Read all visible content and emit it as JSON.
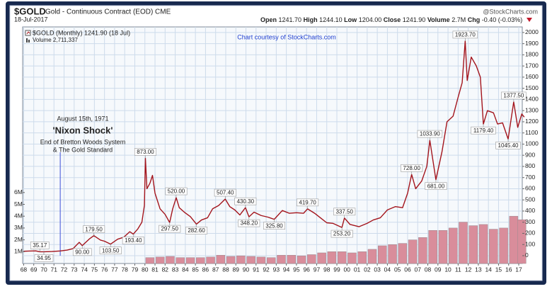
{
  "header": {
    "symbol": "$GOLD",
    "description": "Gold - Continuous Contract (EOD) CME",
    "date": "18-Jul-2017",
    "credit": "@StockCharts.com",
    "quote": [
      {
        "label": "Open",
        "value": "1241.70"
      },
      {
        "label": "High",
        "value": "1244.10"
      },
      {
        "label": "Low",
        "value": "1204.00"
      },
      {
        "label": "Close",
        "value": "1241.90"
      },
      {
        "label": "Volume",
        "value": "2.7M"
      },
      {
        "label": "Chg",
        "value": "-0.40 (-0.03%)"
      }
    ]
  },
  "chart_data": {
    "type": "line",
    "subtitle": "Chart courtesy of StockCharts.com",
    "grid": true,
    "annotations": [
      {
        "x": 1971.62,
        "lines": [
          "August 15th, 1971",
          "'Nixon Shock'",
          "End of Bretton Woods System",
          "& The Gold Standard"
        ]
      }
    ],
    "xlim": [
      1967.9,
      2017.35
    ],
    "xticks": [
      {
        "value": 1968,
        "label": "68"
      },
      {
        "value": 1969,
        "label": "69"
      },
      {
        "value": 1970,
        "label": "70"
      },
      {
        "value": 1971,
        "label": "71"
      },
      {
        "value": 1972,
        "label": "72"
      },
      {
        "value": 1973,
        "label": "73"
      },
      {
        "value": 1974,
        "label": "74"
      },
      {
        "value": 1975,
        "label": "75"
      },
      {
        "value": 1976,
        "label": "76"
      },
      {
        "value": 1977,
        "label": "77"
      },
      {
        "value": 1978,
        "label": "78"
      },
      {
        "value": 1979,
        "label": "79"
      },
      {
        "value": 1980,
        "label": "80"
      },
      {
        "value": 1981,
        "label": "81"
      },
      {
        "value": 1982,
        "label": "82"
      },
      {
        "value": 1983,
        "label": "83"
      },
      {
        "value": 1984,
        "label": "84"
      },
      {
        "value": 1985,
        "label": "85"
      },
      {
        "value": 1986,
        "label": "86"
      },
      {
        "value": 1987,
        "label": "87"
      },
      {
        "value": 1988,
        "label": "88"
      },
      {
        "value": 1989,
        "label": "89"
      },
      {
        "value": 1990,
        "label": "90"
      },
      {
        "value": 1991,
        "label": "91"
      },
      {
        "value": 1992,
        "label": "92"
      },
      {
        "value": 1993,
        "label": "93"
      },
      {
        "value": 1994,
        "label": "94"
      },
      {
        "value": 1995,
        "label": "95"
      },
      {
        "value": 1996,
        "label": "96"
      },
      {
        "value": 1997,
        "label": "97"
      },
      {
        "value": 1998,
        "label": "98"
      },
      {
        "value": 1999,
        "label": "99"
      },
      {
        "value": 2000,
        "label": "00"
      },
      {
        "value": 2001,
        "label": "01"
      },
      {
        "value": 2002,
        "label": "02"
      },
      {
        "value": 2003,
        "label": "03"
      },
      {
        "value": 2004,
        "label": "04"
      },
      {
        "value": 2005,
        "label": "05"
      },
      {
        "value": 2006,
        "label": "06"
      },
      {
        "value": 2007,
        "label": "07"
      },
      {
        "value": 2008,
        "label": "08"
      },
      {
        "value": 2009,
        "label": "09"
      },
      {
        "value": 2010,
        "label": "10"
      },
      {
        "value": 2011,
        "label": "11"
      },
      {
        "value": 2012,
        "label": "12"
      },
      {
        "value": 2013,
        "label": "13"
      },
      {
        "value": 2014,
        "label": "14"
      },
      {
        "value": 2015,
        "label": "15"
      },
      {
        "value": 2016,
        "label": "16"
      },
      {
        "value": 2017,
        "label": "17"
      }
    ],
    "ylim": [
      -70,
      2050
    ],
    "yticks": [
      0,
      100,
      200,
      300,
      400,
      500,
      600,
      700,
      800,
      900,
      1000,
      1100,
      1200,
      1300,
      1400,
      1500,
      1600,
      1700,
      1800,
      1900,
      2000
    ],
    "y2lim": [
      0,
      20000000
    ],
    "y2ticks": [
      {
        "value": 1000000,
        "label": "1M"
      },
      {
        "value": 2000000,
        "label": "2M"
      },
      {
        "value": 3000000,
        "label": "3M"
      },
      {
        "value": 4000000,
        "label": "4M"
      },
      {
        "value": 5000000,
        "label": "5M"
      },
      {
        "value": 6000000,
        "label": "6M"
      }
    ],
    "series": [
      {
        "name": "$GOLD (Monthly) 1241.90 (18 Jul)",
        "color": "#a3141c",
        "x": [
          1968.0,
          1968.5,
          1969.2,
          1969.6,
          1970.0,
          1970.8,
          1971.6,
          1972.3,
          1972.9,
          1973.5,
          1973.8,
          1974.5,
          1974.95,
          1975.6,
          1976.0,
          1976.6,
          1977.3,
          1977.9,
          1978.5,
          1978.85,
          1979.3,
          1979.7,
          1979.95,
          1980.05,
          1980.2,
          1980.5,
          1980.75,
          1981.0,
          1981.5,
          1982.0,
          1982.45,
          1982.75,
          1983.1,
          1983.4,
          1983.9,
          1984.5,
          1985.1,
          1985.6,
          1986.2,
          1986.7,
          1987.3,
          1987.95,
          1988.4,
          1988.9,
          1989.4,
          1989.95,
          1990.3,
          1990.8,
          1991.5,
          1992.2,
          1992.8,
          1993.6,
          1994.3,
          1995.0,
          1995.7,
          1996.1,
          1996.8,
          1997.5,
          1998.0,
          1998.6,
          1999.5,
          1999.75,
          2000.3,
          2001.2,
          2002.0,
          2002.6,
          2003.3,
          2004.0,
          2004.8,
          2005.5,
          2006.0,
          2006.4,
          2006.8,
          2007.4,
          2007.9,
          2008.2,
          2008.8,
          2009.4,
          2009.9,
          2010.5,
          2011.0,
          2011.4,
          2011.7,
          2011.9,
          2012.3,
          2012.8,
          2013.2,
          2013.5,
          2013.9,
          2014.5,
          2014.9,
          2015.4,
          2015.95,
          2016.5,
          2016.9,
          2017.3,
          2017.55
        ],
        "values": [
          39.5,
          41.5,
          43,
          35.17,
          34.95,
          37.5,
          42,
          50,
          64,
          120,
          90,
          150,
          179.5,
          140,
          130,
          103.5,
          148,
          165,
          215,
          193.4,
          240,
          300,
          450,
          873,
          600,
          650,
          720,
          560,
          420,
          370,
          297.5,
          420,
          520,
          430,
          390,
          350,
          282.6,
          320,
          340,
          420,
          450,
          507.4,
          440,
          410,
          365,
          430.3,
          348.2,
          390,
          360,
          345,
          325.8,
          405,
          380,
          385,
          380,
          419.7,
          380,
          330,
          295,
          290,
          253.2,
          337.5,
          280,
          260,
          290,
          320,
          340,
          410,
          440,
          430,
          560,
          728,
          600,
          670,
          800,
          1033.9,
          681,
          930,
          1200,
          1250,
          1420,
          1550,
          1923.7,
          1570,
          1780,
          1700,
          1600,
          1179.4,
          1300,
          1280,
          1180,
          1190,
          1045.4,
          1377.5,
          1150,
          1270,
          1241.9
        ],
        "value_labels": [
          null,
          null,
          null,
          "35.17",
          "34.95",
          null,
          null,
          null,
          null,
          null,
          "90.00",
          null,
          "179.50",
          null,
          null,
          "103.50",
          null,
          null,
          null,
          "193.40",
          null,
          null,
          null,
          "873.00",
          null,
          null,
          null,
          null,
          null,
          null,
          "297.50",
          null,
          "520.00",
          null,
          null,
          null,
          "282.60",
          null,
          null,
          null,
          null,
          "507.40",
          null,
          null,
          null,
          "430.30",
          "348.20",
          null,
          null,
          null,
          "325.80",
          null,
          null,
          null,
          null,
          "419.70",
          null,
          null,
          null,
          null,
          "253.20",
          "337.50",
          null,
          null,
          null,
          null,
          null,
          null,
          null,
          null,
          null,
          "728.00",
          null,
          null,
          null,
          "1033.90",
          "681.00",
          null,
          null,
          null,
          null,
          null,
          "1923.70",
          null,
          null,
          null,
          null,
          "1179.40",
          null,
          null,
          null,
          null,
          "1045.40",
          "1377.50",
          null,
          null,
          null
        ]
      },
      {
        "name": "Volume 2,711,337",
        "type": "bar",
        "axis": "y2",
        "color": "#d98d9b",
        "x": [
          1980.5,
          1981.5,
          1982.5,
          1983.5,
          1984.5,
          1985.5,
          1986.5,
          1987.5,
          1988.5,
          1989.5,
          1990.5,
          1991.5,
          1992.5,
          1993.5,
          1994.5,
          1995.5,
          1996.5,
          1997.5,
          1998.5,
          1999.5,
          2000.5,
          2001.5,
          2002.5,
          2003.5,
          2004.5,
          2005.5,
          2006.5,
          2007.5,
          2008.5,
          2009.5,
          2010.5,
          2011.5,
          2012.5,
          2013.5,
          2014.5,
          2015.5,
          2016.5,
          2017.3
        ],
        "values": [
          500000,
          550000,
          600000,
          500000,
          500000,
          500000,
          550000,
          700000,
          600000,
          650000,
          600000,
          550000,
          500000,
          700000,
          700000,
          650000,
          750000,
          900000,
          1000000,
          1000000,
          900000,
          1000000,
          1200000,
          1500000,
          1600000,
          1700000,
          2000000,
          2200000,
          2800000,
          2800000,
          3000000,
          3500000,
          3200000,
          3300000,
          2900000,
          3000000,
          4000000,
          3700000
        ]
      }
    ]
  }
}
